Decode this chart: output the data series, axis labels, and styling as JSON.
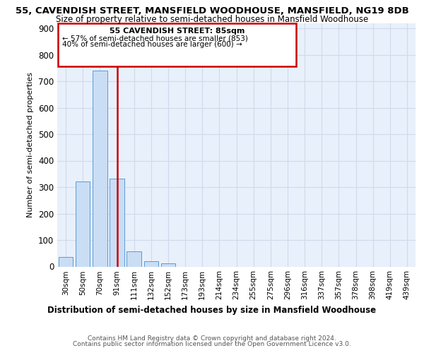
{
  "title_line1": "55, CAVENDISH STREET, MANSFIELD WOODHOUSE, MANSFIELD, NG19 8DB",
  "title_line2": "Size of property relative to semi-detached houses in Mansfield Woodhouse",
  "xlabel_label": "Distribution of semi-detached houses by size in Mansfield Woodhouse",
  "ylabel": "Number of semi-detached properties",
  "footer_line1": "Contains HM Land Registry data © Crown copyright and database right 2024.",
  "footer_line2": "Contains public sector information licensed under the Open Government Licence v3.0.",
  "categories": [
    "30sqm",
    "50sqm",
    "70sqm",
    "91sqm",
    "111sqm",
    "132sqm",
    "152sqm",
    "173sqm",
    "193sqm",
    "214sqm",
    "234sqm",
    "255sqm",
    "275sqm",
    "296sqm",
    "316sqm",
    "337sqm",
    "357sqm",
    "378sqm",
    "398sqm",
    "419sqm",
    "439sqm"
  ],
  "values": [
    35,
    322,
    740,
    333,
    57,
    20,
    12,
    0,
    0,
    0,
    0,
    0,
    0,
    0,
    0,
    0,
    0,
    0,
    0,
    0,
    0
  ],
  "bar_color": "#c9ddf5",
  "bar_edge_color": "#5b9bd5",
  "grid_color": "#d0daea",
  "background_color": "#e8f0fb",
  "vline_color": "#cc0000",
  "vline_x": 3.0,
  "annotation_title": "55 CAVENDISH STREET: 85sqm",
  "annotation_line1": "← 57% of semi-detached houses are smaller (853)",
  "annotation_line2": "40% of semi-detached houses are larger (600) →",
  "annotation_box_color": "#cc0000",
  "ylim_max": 920,
  "yticks": [
    0,
    100,
    200,
    300,
    400,
    500,
    600,
    700,
    800,
    900
  ]
}
